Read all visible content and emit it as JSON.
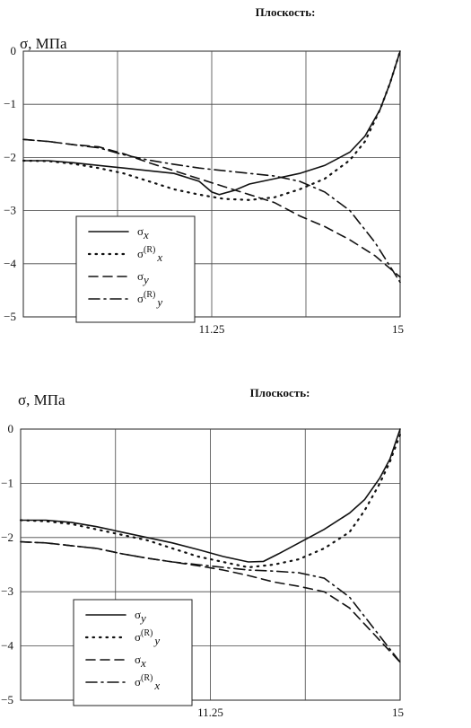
{
  "chart_data": [
    {
      "type": "line",
      "title": "Плоскость:",
      "ylabel": "σ, МПа",
      "xlim": [
        7.5,
        15
      ],
      "ylim": [
        -5,
        0
      ],
      "x_ticks": [
        "11.25",
        "15"
      ],
      "y_ticks": [
        "0",
        "−1",
        "−2",
        "−3",
        "−4",
        "−5"
      ],
      "grid": true,
      "legend_position": "bottom-left",
      "series": [
        {
          "name": "σx",
          "style": "solid",
          "points": [
            [
              7.5,
              -2.06
            ],
            [
              8.0,
              -2.06
            ],
            [
              8.5,
              -2.1
            ],
            [
              9.0,
              -2.15
            ],
            [
              9.5,
              -2.2
            ],
            [
              10.0,
              -2.25
            ],
            [
              10.5,
              -2.3
            ],
            [
              11.0,
              -2.45
            ],
            [
              11.25,
              -2.65
            ],
            [
              11.4,
              -2.7
            ],
            [
              11.7,
              -2.62
            ],
            [
              12.0,
              -2.5
            ],
            [
              12.5,
              -2.4
            ],
            [
              13.0,
              -2.3
            ],
            [
              13.5,
              -2.15
            ],
            [
              14.0,
              -1.9
            ],
            [
              14.3,
              -1.6
            ],
            [
              14.6,
              -1.1
            ],
            [
              14.8,
              -0.6
            ],
            [
              15.0,
              0.0
            ]
          ]
        },
        {
          "name": "σ(R)x",
          "style": "dotted",
          "points": [
            [
              7.5,
              -2.06
            ],
            [
              8.0,
              -2.07
            ],
            [
              8.5,
              -2.12
            ],
            [
              9.0,
              -2.2
            ],
            [
              9.5,
              -2.3
            ],
            [
              10.0,
              -2.45
            ],
            [
              10.5,
              -2.6
            ],
            [
              11.0,
              -2.7
            ],
            [
              11.5,
              -2.78
            ],
            [
              12.0,
              -2.8
            ],
            [
              12.5,
              -2.75
            ],
            [
              13.0,
              -2.6
            ],
            [
              13.5,
              -2.4
            ],
            [
              14.0,
              -2.05
            ],
            [
              14.3,
              -1.7
            ],
            [
              14.6,
              -1.1
            ],
            [
              14.8,
              -0.6
            ],
            [
              15.0,
              0.0
            ]
          ]
        },
        {
          "name": "σy",
          "style": "dashed",
          "points": [
            [
              7.5,
              -1.66
            ],
            [
              8.0,
              -1.7
            ],
            [
              8.5,
              -1.76
            ],
            [
              9.0,
              -1.8
            ],
            [
              9.5,
              -1.93
            ],
            [
              10.0,
              -2.1
            ],
            [
              10.5,
              -2.25
            ],
            [
              11.0,
              -2.4
            ],
            [
              11.5,
              -2.55
            ],
            [
              12.0,
              -2.7
            ],
            [
              12.5,
              -2.85
            ],
            [
              13.0,
              -3.1
            ],
            [
              13.5,
              -3.3
            ],
            [
              14.0,
              -3.55
            ],
            [
              14.5,
              -3.85
            ],
            [
              15.0,
              -4.25
            ]
          ]
        },
        {
          "name": "σ(R)y",
          "style": "dashdot",
          "points": [
            [
              7.5,
              -1.66
            ],
            [
              8.0,
              -1.7
            ],
            [
              8.5,
              -1.76
            ],
            [
              9.0,
              -1.82
            ],
            [
              9.5,
              -1.95
            ],
            [
              10.0,
              -2.05
            ],
            [
              10.5,
              -2.13
            ],
            [
              11.0,
              -2.2
            ],
            [
              11.5,
              -2.25
            ],
            [
              12.0,
              -2.3
            ],
            [
              12.5,
              -2.35
            ],
            [
              13.0,
              -2.45
            ],
            [
              13.5,
              -2.65
            ],
            [
              14.0,
              -3.0
            ],
            [
              14.5,
              -3.6
            ],
            [
              15.0,
              -4.35
            ]
          ]
        }
      ]
    },
    {
      "type": "line",
      "title": "Плоскость:",
      "ylabel": "σ, МПа",
      "xlim": [
        7.5,
        15
      ],
      "ylim": [
        -5,
        0
      ],
      "x_ticks": [
        "11.25",
        "15"
      ],
      "y_ticks": [
        "0",
        "−1",
        "−2",
        "−3",
        "−4",
        "−5"
      ],
      "grid": true,
      "legend_position": "bottom-left",
      "series": [
        {
          "name": "σy",
          "style": "solid",
          "points": [
            [
              7.5,
              -1.68
            ],
            [
              8.0,
              -1.68
            ],
            [
              8.5,
              -1.72
            ],
            [
              9.0,
              -1.8
            ],
            [
              9.5,
              -1.9
            ],
            [
              10.0,
              -2.0
            ],
            [
              10.5,
              -2.1
            ],
            [
              11.0,
              -2.22
            ],
            [
              11.5,
              -2.35
            ],
            [
              12.0,
              -2.45
            ],
            [
              12.3,
              -2.44
            ],
            [
              12.6,
              -2.3
            ],
            [
              13.0,
              -2.1
            ],
            [
              13.5,
              -1.85
            ],
            [
              14.0,
              -1.55
            ],
            [
              14.3,
              -1.3
            ],
            [
              14.6,
              -0.9
            ],
            [
              14.8,
              -0.55
            ],
            [
              15.0,
              0.0
            ]
          ]
        },
        {
          "name": "σ(R)y",
          "style": "dotted",
          "points": [
            [
              7.5,
              -1.68
            ],
            [
              8.0,
              -1.7
            ],
            [
              8.5,
              -1.75
            ],
            [
              9.0,
              -1.85
            ],
            [
              9.5,
              -1.95
            ],
            [
              10.0,
              -2.05
            ],
            [
              10.5,
              -2.2
            ],
            [
              11.0,
              -2.35
            ],
            [
              11.5,
              -2.45
            ],
            [
              12.0,
              -2.55
            ],
            [
              12.5,
              -2.5
            ],
            [
              13.0,
              -2.4
            ],
            [
              13.5,
              -2.2
            ],
            [
              14.0,
              -1.9
            ],
            [
              14.3,
              -1.5
            ],
            [
              14.6,
              -1.0
            ],
            [
              14.8,
              -0.6
            ],
            [
              15.0,
              -0.1
            ]
          ]
        },
        {
          "name": "σx",
          "style": "dashed",
          "points": [
            [
              7.5,
              -2.08
            ],
            [
              8.0,
              -2.1
            ],
            [
              8.5,
              -2.15
            ],
            [
              9.0,
              -2.2
            ],
            [
              9.5,
              -2.3
            ],
            [
              10.0,
              -2.38
            ],
            [
              10.5,
              -2.45
            ],
            [
              11.0,
              -2.52
            ],
            [
              11.5,
              -2.6
            ],
            [
              12.0,
              -2.7
            ],
            [
              12.5,
              -2.82
            ],
            [
              13.0,
              -2.9
            ],
            [
              13.5,
              -3.0
            ],
            [
              14.0,
              -3.3
            ],
            [
              14.5,
              -3.8
            ],
            [
              15.0,
              -4.3
            ]
          ]
        },
        {
          "name": "σ(R)x",
          "style": "dashdot",
          "points": [
            [
              7.5,
              -2.08
            ],
            [
              8.0,
              -2.1
            ],
            [
              8.5,
              -2.15
            ],
            [
              9.0,
              -2.2
            ],
            [
              9.5,
              -2.3
            ],
            [
              10.0,
              -2.38
            ],
            [
              10.5,
              -2.45
            ],
            [
              11.0,
              -2.5
            ],
            [
              11.5,
              -2.55
            ],
            [
              12.0,
              -2.6
            ],
            [
              12.5,
              -2.62
            ],
            [
              13.0,
              -2.65
            ],
            [
              13.5,
              -2.75
            ],
            [
              14.0,
              -3.1
            ],
            [
              14.5,
              -3.7
            ],
            [
              15.0,
              -4.3
            ]
          ]
        }
      ]
    }
  ]
}
